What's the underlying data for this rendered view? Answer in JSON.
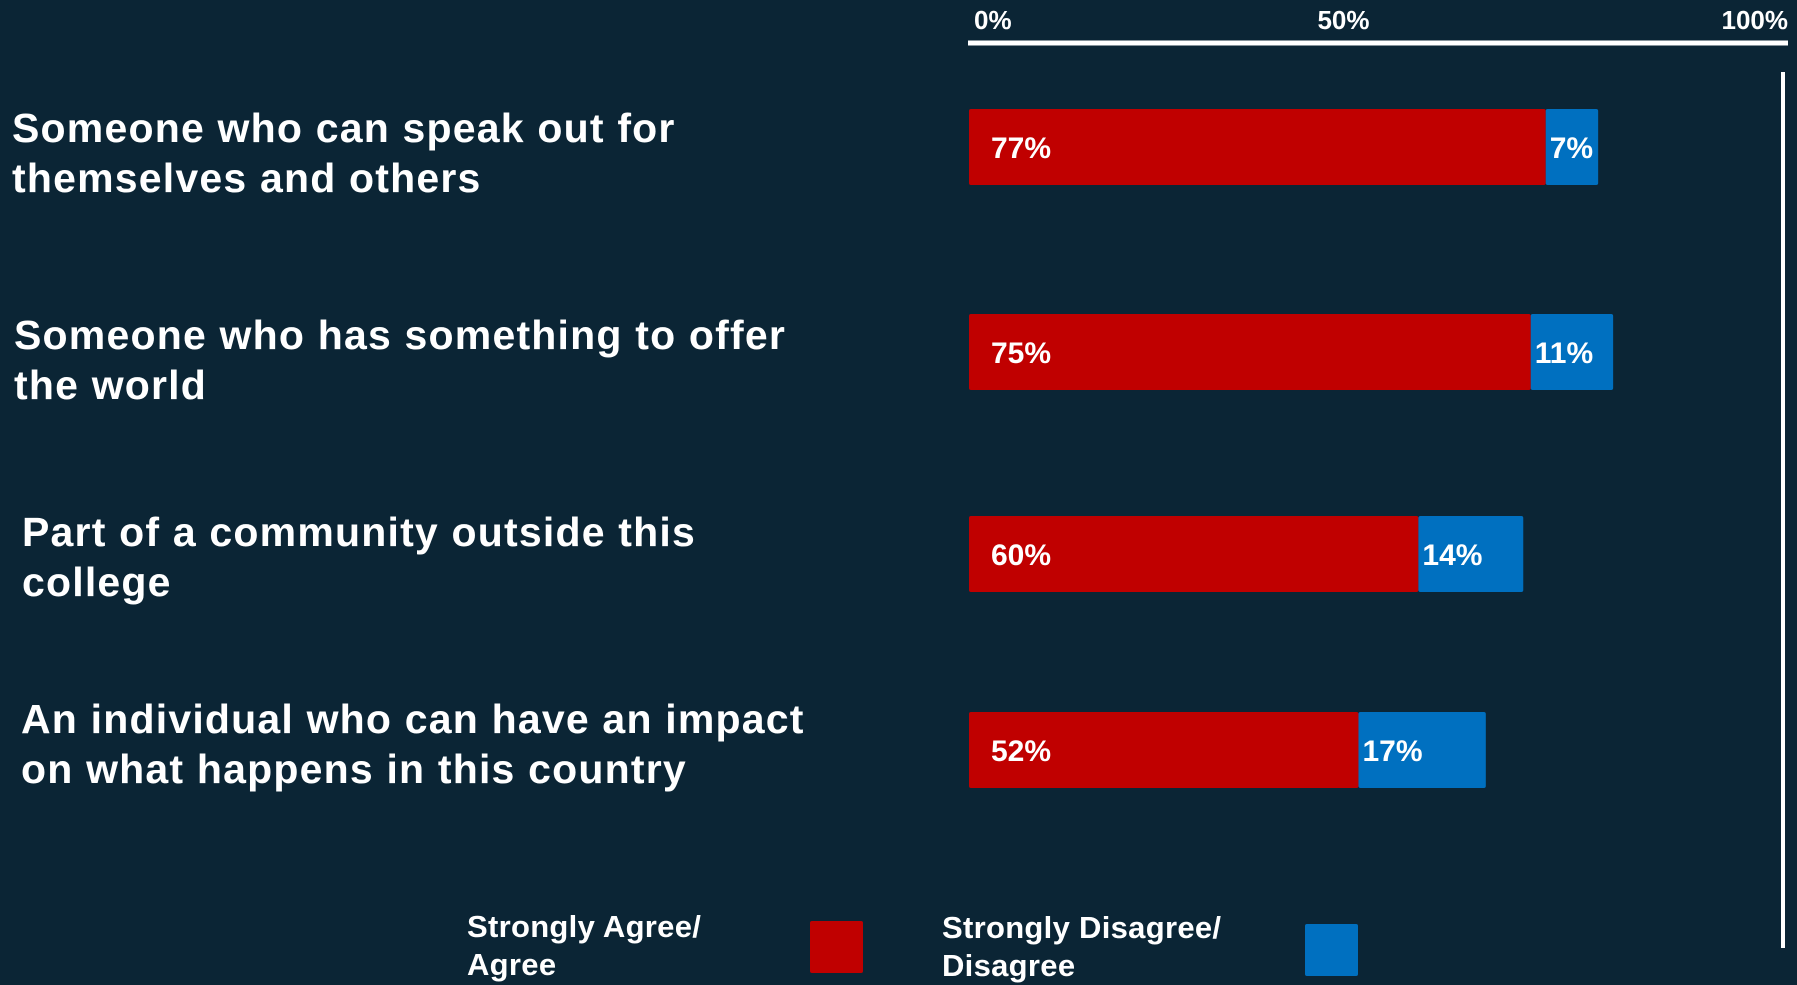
{
  "chart_data": {
    "type": "bar",
    "orientation": "horizontal",
    "stacked": true,
    "categories": [
      "Someone who can speak out for themselves and others",
      "Someone who has something to offer the world",
      "Part of a community outside this college",
      "An individual who can have an impact on what happens in this country"
    ],
    "category_lines": [
      [
        "Someone who can speak out for",
        "themselves and others"
      ],
      [
        "Someone who has something to offer",
        "the world"
      ],
      [
        "Part of a community outside this",
        "college"
      ],
      [
        "An individual who can have an impact",
        "on what happens in this country"
      ]
    ],
    "series": [
      {
        "name": "Strongly Agree/ Agree",
        "values": [
          77,
          75,
          60,
          52
        ],
        "labels": [
          "77%",
          "75%",
          "60%",
          "52%"
        ],
        "color": "#c00000"
      },
      {
        "name": "Strongly Disagree/ Disagree",
        "values": [
          7,
          11,
          14,
          17
        ],
        "labels": [
          "7%",
          "11%",
          "14%",
          "17%"
        ],
        "color": "#0070c0"
      }
    ],
    "xlim": [
      0,
      100
    ],
    "x_ticks": [
      "0%",
      "50%",
      "100%"
    ],
    "axis_position": "top",
    "grid": false,
    "legend_position": "bottom"
  },
  "legend": {
    "agree_lines": [
      "Strongly Agree/",
      "Agree"
    ],
    "disagree_lines": [
      "Strongly Disagree/",
      "Disagree"
    ]
  },
  "colors": {
    "background": "#0b2535",
    "agree": "#c00000",
    "disagree": "#0070c0",
    "text": "#ffffff"
  }
}
